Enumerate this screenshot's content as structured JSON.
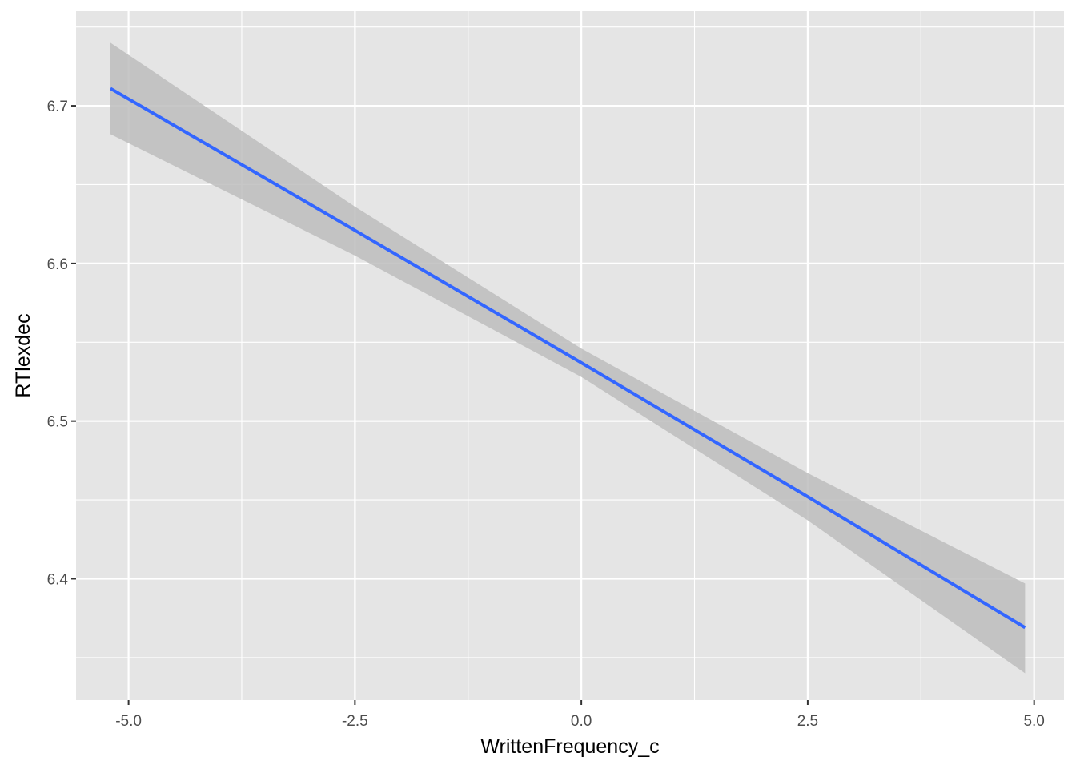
{
  "chart_data": {
    "type": "line",
    "title": "",
    "xlabel": "WrittenFrequency_c",
    "ylabel": "RTlexdec",
    "xlim": [
      -5.58,
      5.33
    ],
    "ylim": [
      6.323,
      6.76
    ],
    "x_ticks": [
      -5.0,
      -2.5,
      0.0,
      2.5,
      5.0
    ],
    "x_tick_labels": [
      "-5.0",
      "-2.5",
      "0.0",
      "2.5",
      "5.0"
    ],
    "y_ticks": [
      6.4,
      6.5,
      6.6,
      6.7
    ],
    "y_tick_labels": [
      "6.4",
      "6.5",
      "6.6",
      "6.7"
    ],
    "grid": true,
    "colors": {
      "panel_background": "#e5e5e5",
      "grid": "#ffffff",
      "line": "#3366ff",
      "ribbon": "#bdbdbd"
    },
    "series": [
      {
        "x": [
          -5.2,
          -2.5,
          0.0,
          2.5,
          4.9
        ],
        "y": [
          6.711,
          6.621,
          6.537,
          6.452,
          6.369
        ],
        "ymin": [
          6.682,
          6.605,
          6.528,
          6.437,
          6.34
        ],
        "ymax": [
          6.74,
          6.636,
          6.546,
          6.467,
          6.397
        ]
      }
    ]
  }
}
